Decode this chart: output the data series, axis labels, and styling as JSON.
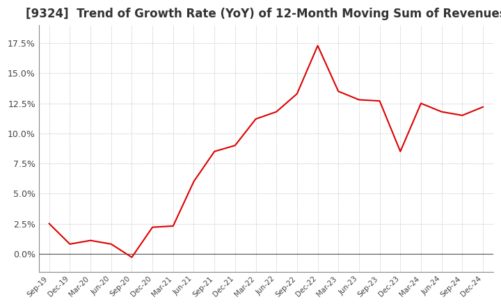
{
  "title": "[9324]  Trend of Growth Rate (YoY) of 12-Month Moving Sum of Revenues",
  "title_fontsize": 12,
  "title_color": "#333333",
  "background_color": "#ffffff",
  "plot_bg_color": "#ffffff",
  "grid_color": "#aaaaaa",
  "line_color": "#dd0000",
  "x_labels": [
    "Sep-19",
    "Dec-19",
    "Mar-20",
    "Jun-20",
    "Sep-20",
    "Dec-20",
    "Mar-21",
    "Jun-21",
    "Sep-21",
    "Dec-21",
    "Mar-22",
    "Jun-22",
    "Sep-22",
    "Dec-22",
    "Mar-23",
    "Jun-23",
    "Sep-23",
    "Dec-23",
    "Mar-24",
    "Jun-24",
    "Sep-24",
    "Dec-24"
  ],
  "y_values": [
    2.5,
    0.8,
    1.1,
    0.8,
    -0.3,
    2.2,
    2.3,
    6.0,
    8.5,
    9.0,
    11.2,
    11.8,
    13.3,
    17.3,
    13.5,
    12.8,
    12.7,
    8.5,
    12.5,
    11.8,
    11.5,
    12.2
  ],
  "ylim": [
    -1.5,
    19.0
  ],
  "yticks": [
    0.0,
    2.5,
    5.0,
    7.5,
    10.0,
    12.5,
    15.0,
    17.5
  ]
}
